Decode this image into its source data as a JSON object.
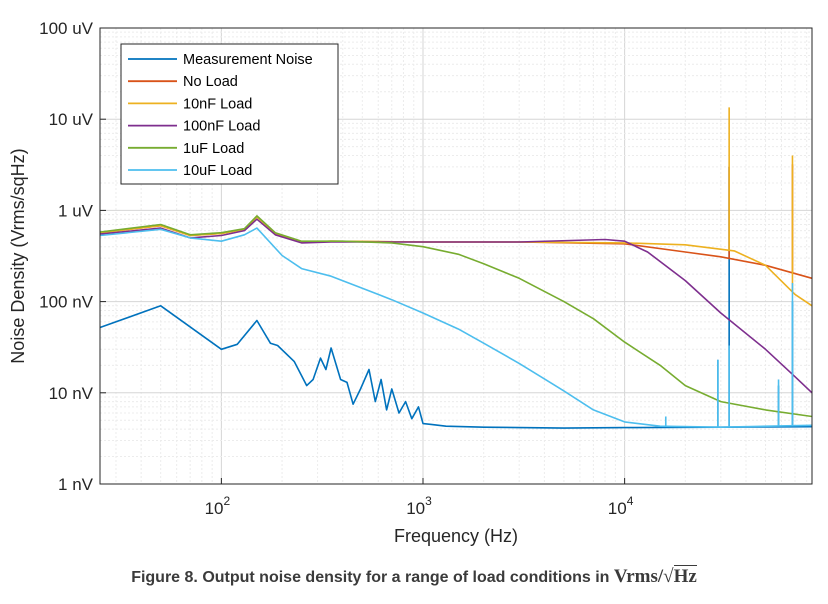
{
  "chart_data": {
    "type": "line",
    "xscale": "log",
    "yscale": "log",
    "xlim": [
      25,
      85000
    ],
    "ylim": [
      1e-09,
      0.0001
    ],
    "xlabel": "Frequency (Hz)",
    "ylabel": "Noise Density (Vrms/sqHz)",
    "grid": true,
    "legend_position": "top-left",
    "xtick_labels": [
      {
        "value": 100,
        "base": "10",
        "exp": "2"
      },
      {
        "value": 1000,
        "base": "10",
        "exp": "3"
      },
      {
        "value": 10000,
        "base": "10",
        "exp": "4"
      }
    ],
    "ytick_labels": [
      {
        "value": 0.0001,
        "label": "100 uV"
      },
      {
        "value": 1e-05,
        "label": "10 uV"
      },
      {
        "value": 1e-06,
        "label": "1 uV"
      },
      {
        "value": 1e-07,
        "label": "100 nV"
      },
      {
        "value": 1e-08,
        "label": "10 nV"
      },
      {
        "value": 1e-09,
        "label": "1 nV"
      }
    ],
    "series": [
      {
        "name": "Measurement Noise",
        "color": "#0072BD",
        "points": [
          [
            25,
            5.2e-08
          ],
          [
            50,
            9e-08
          ],
          [
            100,
            3e-08
          ],
          [
            120,
            3.4e-08
          ],
          [
            150,
            6.2e-08
          ],
          [
            175,
            3.5e-08
          ],
          [
            190,
            3.3e-08
          ],
          [
            230,
            2.2e-08
          ],
          [
            265,
            1.2e-08
          ],
          [
            285,
            1.4e-08
          ],
          [
            310,
            2.4e-08
          ],
          [
            330,
            1.8e-08
          ],
          [
            350,
            3.1e-08
          ],
          [
            390,
            1.4e-08
          ],
          [
            420,
            1.3e-08
          ],
          [
            450,
            7.5e-09
          ],
          [
            490,
            1.1e-08
          ],
          [
            540,
            1.8e-08
          ],
          [
            580,
            8e-09
          ],
          [
            620,
            1.4e-08
          ],
          [
            660,
            6.5e-09
          ],
          [
            700,
            1.1e-08
          ],
          [
            760,
            6e-09
          ],
          [
            820,
            8e-09
          ],
          [
            880,
            5.2e-09
          ],
          [
            950,
            7e-09
          ],
          [
            1000,
            4.6e-09
          ],
          [
            1100,
            4.5e-09
          ],
          [
            1300,
            4.3e-09
          ],
          [
            2000,
            4.2e-09
          ],
          [
            5000,
            4.1e-09
          ],
          [
            10000,
            4.15e-09
          ],
          [
            30000,
            4.2e-09
          ],
          [
            85000,
            4.25e-09
          ]
        ],
        "spikes": [
          [
            29000,
            2.3e-08
          ],
          [
            33000,
            3e-06
          ],
          [
            58000,
            1.2e-08
          ],
          [
            68000,
            1e-07
          ]
        ]
      },
      {
        "name": "No Load",
        "color": "#D95319",
        "points": [
          [
            25,
            5.7e-07
          ],
          [
            50,
            6.8e-07
          ],
          [
            70,
            5.3e-07
          ],
          [
            100,
            5.6e-07
          ],
          [
            130,
            6.2e-07
          ],
          [
            150,
            8.5e-07
          ],
          [
            185,
            5.6e-07
          ],
          [
            250,
            4.5e-07
          ],
          [
            350,
            4.6e-07
          ],
          [
            1000,
            4.5e-07
          ],
          [
            3000,
            4.5e-07
          ],
          [
            10000,
            4.3e-07
          ],
          [
            20000,
            3.5e-07
          ],
          [
            30000,
            3.1e-07
          ],
          [
            50000,
            2.5e-07
          ],
          [
            85000,
            1.8e-07
          ]
        ],
        "spikes": [
          [
            33000,
            3e-06
          ],
          [
            68000,
            3.2e-06
          ]
        ]
      },
      {
        "name": "10nF Load",
        "color": "#EDB120",
        "points": [
          [
            25,
            5.7e-07
          ],
          [
            50,
            6.8e-07
          ],
          [
            70,
            5.3e-07
          ],
          [
            100,
            5.6e-07
          ],
          [
            130,
            6.2e-07
          ],
          [
            150,
            8.5e-07
          ],
          [
            185,
            5.6e-07
          ],
          [
            250,
            4.5e-07
          ],
          [
            350,
            4.6e-07
          ],
          [
            1000,
            4.5e-07
          ],
          [
            3000,
            4.5e-07
          ],
          [
            10000,
            4.4e-07
          ],
          [
            20000,
            4.2e-07
          ],
          [
            35000,
            3.6e-07
          ],
          [
            50000,
            2.5e-07
          ],
          [
            70000,
            1.2e-07
          ],
          [
            85000,
            9e-08
          ]
        ],
        "spikes": [
          [
            33000,
            1.35e-05
          ],
          [
            68000,
            4e-06
          ]
        ]
      },
      {
        "name": "100nF Load",
        "color": "#7E2F8E",
        "points": [
          [
            25,
            5.5e-07
          ],
          [
            50,
            6.4e-07
          ],
          [
            70,
            5e-07
          ],
          [
            100,
            5.3e-07
          ],
          [
            130,
            6e-07
          ],
          [
            150,
            8e-07
          ],
          [
            185,
            5.4e-07
          ],
          [
            250,
            4.4e-07
          ],
          [
            350,
            4.5e-07
          ],
          [
            1000,
            4.5e-07
          ],
          [
            3000,
            4.5e-07
          ],
          [
            8000,
            4.8e-07
          ],
          [
            10000,
            4.6e-07
          ],
          [
            13000,
            3.5e-07
          ],
          [
            20000,
            1.7e-07
          ],
          [
            30000,
            7.5e-08
          ],
          [
            50000,
            3e-08
          ],
          [
            70000,
            1.5e-08
          ],
          [
            85000,
            1e-08
          ]
        ],
        "spikes": []
      },
      {
        "name": "1uF Load",
        "color": "#77AC30",
        "points": [
          [
            25,
            5.8e-07
          ],
          [
            50,
            7e-07
          ],
          [
            70,
            5.4e-07
          ],
          [
            100,
            5.7e-07
          ],
          [
            130,
            6.3e-07
          ],
          [
            150,
            8.7e-07
          ],
          [
            185,
            5.7e-07
          ],
          [
            250,
            4.6e-07
          ],
          [
            400,
            4.6e-07
          ],
          [
            700,
            4.4e-07
          ],
          [
            1000,
            4e-07
          ],
          [
            1500,
            3.3e-07
          ],
          [
            2000,
            2.6e-07
          ],
          [
            3000,
            1.8e-07
          ],
          [
            5000,
            1e-07
          ],
          [
            7000,
            6.5e-08
          ],
          [
            10000,
            3.6e-08
          ],
          [
            15000,
            2e-08
          ],
          [
            20000,
            1.2e-08
          ],
          [
            30000,
            8e-09
          ],
          [
            50000,
            6.5e-09
          ],
          [
            85000,
            5.5e-09
          ]
        ],
        "spikes": []
      },
      {
        "name": "10uF Load",
        "color": "#4DBEEE",
        "points": [
          [
            25,
            5.3e-07
          ],
          [
            50,
            6.2e-07
          ],
          [
            70,
            5e-07
          ],
          [
            100,
            4.6e-07
          ],
          [
            130,
            5.4e-07
          ],
          [
            150,
            6.4e-07
          ],
          [
            200,
            3.2e-07
          ],
          [
            250,
            2.3e-07
          ],
          [
            350,
            1.9e-07
          ],
          [
            500,
            1.4e-07
          ],
          [
            700,
            1.05e-07
          ],
          [
            1000,
            7.5e-08
          ],
          [
            1500,
            5e-08
          ],
          [
            2000,
            3.5e-08
          ],
          [
            3000,
            2.1e-08
          ],
          [
            5000,
            1.05e-08
          ],
          [
            7000,
            6.5e-09
          ],
          [
            10000,
            4.8e-09
          ],
          [
            15000,
            4.3e-09
          ],
          [
            30000,
            4.2e-09
          ],
          [
            85000,
            4.4e-09
          ]
        ],
        "spikes": [
          [
            16000,
            5.5e-09
          ],
          [
            29000,
            2.3e-08
          ],
          [
            33000,
            3.3e-08
          ],
          [
            58000,
            1.4e-08
          ],
          [
            68000,
            1.6e-07
          ]
        ]
      }
    ]
  },
  "caption": {
    "text": "Figure 8. Output noise density for a range of load conditions in ",
    "unit_html_parts": [
      "Vrms/",
      "√",
      "Hz"
    ]
  }
}
